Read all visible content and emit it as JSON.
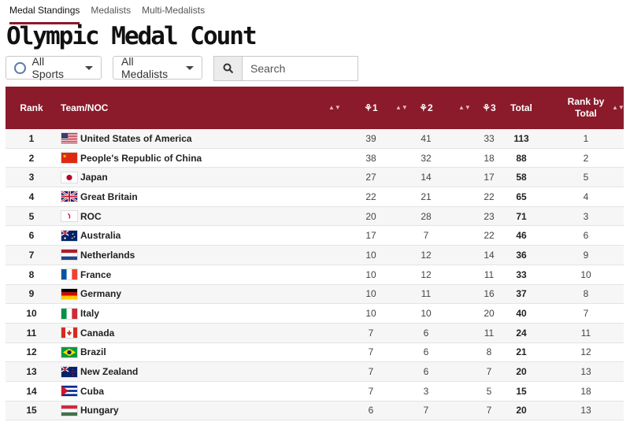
{
  "tabs": [
    "Medal Standings",
    "Medalists",
    "Multi-Medalists"
  ],
  "title": "Olympic Medal Count",
  "filters": {
    "sports": "All Sports",
    "medalists": "All Medalists"
  },
  "search": {
    "placeholder": "Search"
  },
  "columns": {
    "rank": "Rank",
    "team": "Team/NOC",
    "gold": "1",
    "silver": "2",
    "bronze": "3",
    "total": "Total",
    "rank_total": "Rank by Total"
  },
  "rows": [
    {
      "rank": "1",
      "team": "United States of America",
      "flag": "usa",
      "gold": "39",
      "silver": "41",
      "bronze": "33",
      "total": "113",
      "rank_total": "1"
    },
    {
      "rank": "2",
      "team": "People's Republic of China",
      "flag": "china",
      "gold": "38",
      "silver": "32",
      "bronze": "18",
      "total": "88",
      "rank_total": "2"
    },
    {
      "rank": "3",
      "team": "Japan",
      "flag": "japan",
      "gold": "27",
      "silver": "14",
      "bronze": "17",
      "total": "58",
      "rank_total": "5"
    },
    {
      "rank": "4",
      "team": "Great Britain",
      "flag": "gbr",
      "gold": "22",
      "silver": "21",
      "bronze": "22",
      "total": "65",
      "rank_total": "4"
    },
    {
      "rank": "5",
      "team": "ROC",
      "flag": "roc",
      "gold": "20",
      "silver": "28",
      "bronze": "23",
      "total": "71",
      "rank_total": "3"
    },
    {
      "rank": "6",
      "team": "Australia",
      "flag": "australia",
      "gold": "17",
      "silver": "7",
      "bronze": "22",
      "total": "46",
      "rank_total": "6"
    },
    {
      "rank": "7",
      "team": "Netherlands",
      "flag": "netherlands",
      "gold": "10",
      "silver": "12",
      "bronze": "14",
      "total": "36",
      "rank_total": "9"
    },
    {
      "rank": "8",
      "team": "France",
      "flag": "france",
      "gold": "10",
      "silver": "12",
      "bronze": "11",
      "total": "33",
      "rank_total": "10"
    },
    {
      "rank": "9",
      "team": "Germany",
      "flag": "germany",
      "gold": "10",
      "silver": "11",
      "bronze": "16",
      "total": "37",
      "rank_total": "8"
    },
    {
      "rank": "10",
      "team": "Italy",
      "flag": "italy",
      "gold": "10",
      "silver": "10",
      "bronze": "20",
      "total": "40",
      "rank_total": "7"
    },
    {
      "rank": "11",
      "team": "Canada",
      "flag": "canada",
      "gold": "7",
      "silver": "6",
      "bronze": "11",
      "total": "24",
      "rank_total": "11"
    },
    {
      "rank": "12",
      "team": "Brazil",
      "flag": "brazil",
      "gold": "7",
      "silver": "6",
      "bronze": "8",
      "total": "21",
      "rank_total": "12"
    },
    {
      "rank": "13",
      "team": "New Zealand",
      "flag": "new-zealand",
      "gold": "7",
      "silver": "6",
      "bronze": "7",
      "total": "20",
      "rank_total": "13"
    },
    {
      "rank": "14",
      "team": "Cuba",
      "flag": "cuba",
      "gold": "7",
      "silver": "3",
      "bronze": "5",
      "total": "15",
      "rank_total": "18"
    },
    {
      "rank": "15",
      "team": "Hungary",
      "flag": "hungary",
      "gold": "6",
      "silver": "7",
      "bronze": "7",
      "total": "20",
      "rank_total": "13"
    }
  ],
  "colors": {
    "header_bg": "#8b1a2b",
    "accent": "#8b1a2b"
  }
}
